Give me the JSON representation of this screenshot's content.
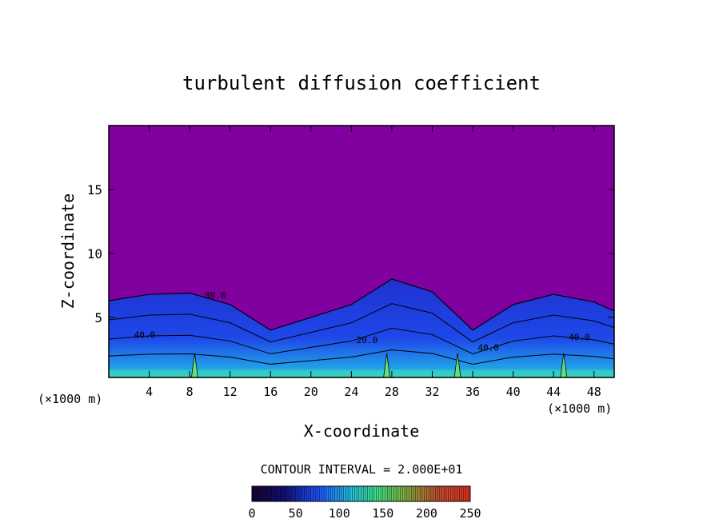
{
  "chart_data": {
    "type": "heatmap",
    "title": "turbulent diffusion coefficient",
    "xlabel": "X-coordinate",
    "ylabel": "Z-coordinate",
    "x_unit_label_left": "(×1000 m)",
    "x_unit_label_right": "(×1000 m)",
    "x_ticks": [
      "4",
      "8",
      "12",
      "16",
      "20",
      "24",
      "28",
      "32",
      "36",
      "40",
      "44",
      "48"
    ],
    "x_tick_values": [
      4,
      8,
      12,
      16,
      20,
      24,
      28,
      32,
      36,
      40,
      44,
      48
    ],
    "xlim": [
      0,
      50
    ],
    "y_ticks": [
      "5",
      "10",
      "15"
    ],
    "y_tick_values": [
      5,
      10,
      15
    ],
    "ylim": [
      0.3,
      20
    ],
    "contour_interval_text": "CONTOUR INTERVAL = 2.000E+01",
    "contour_labels": [
      "40.0",
      "40.0",
      "80.0",
      "20.0",
      "40.0"
    ],
    "colorbar": {
      "ticks": [
        "0",
        "50",
        "100",
        "150",
        "200",
        "250"
      ],
      "tick_values": [
        0,
        50,
        100,
        150,
        200,
        250
      ],
      "range": [
        0,
        250
      ]
    },
    "background_color": "#8000a0",
    "cloud_tops": [
      {
        "x": 0,
        "z": 6.3
      },
      {
        "x": 4,
        "z": 6.8
      },
      {
        "x": 8,
        "z": 6.9
      },
      {
        "x": 12,
        "z": 6.0
      },
      {
        "x": 16,
        "z": 4.0
      },
      {
        "x": 20,
        "z": 5.0
      },
      {
        "x": 24,
        "z": 6.0
      },
      {
        "x": 28,
        "z": 8.0
      },
      {
        "x": 32,
        "z": 7.0
      },
      {
        "x": 36,
        "z": 4.0
      },
      {
        "x": 40,
        "z": 6.0
      },
      {
        "x": 44,
        "z": 6.8
      },
      {
        "x": 48,
        "z": 6.2
      },
      {
        "x": 50,
        "z": 5.5
      }
    ]
  }
}
